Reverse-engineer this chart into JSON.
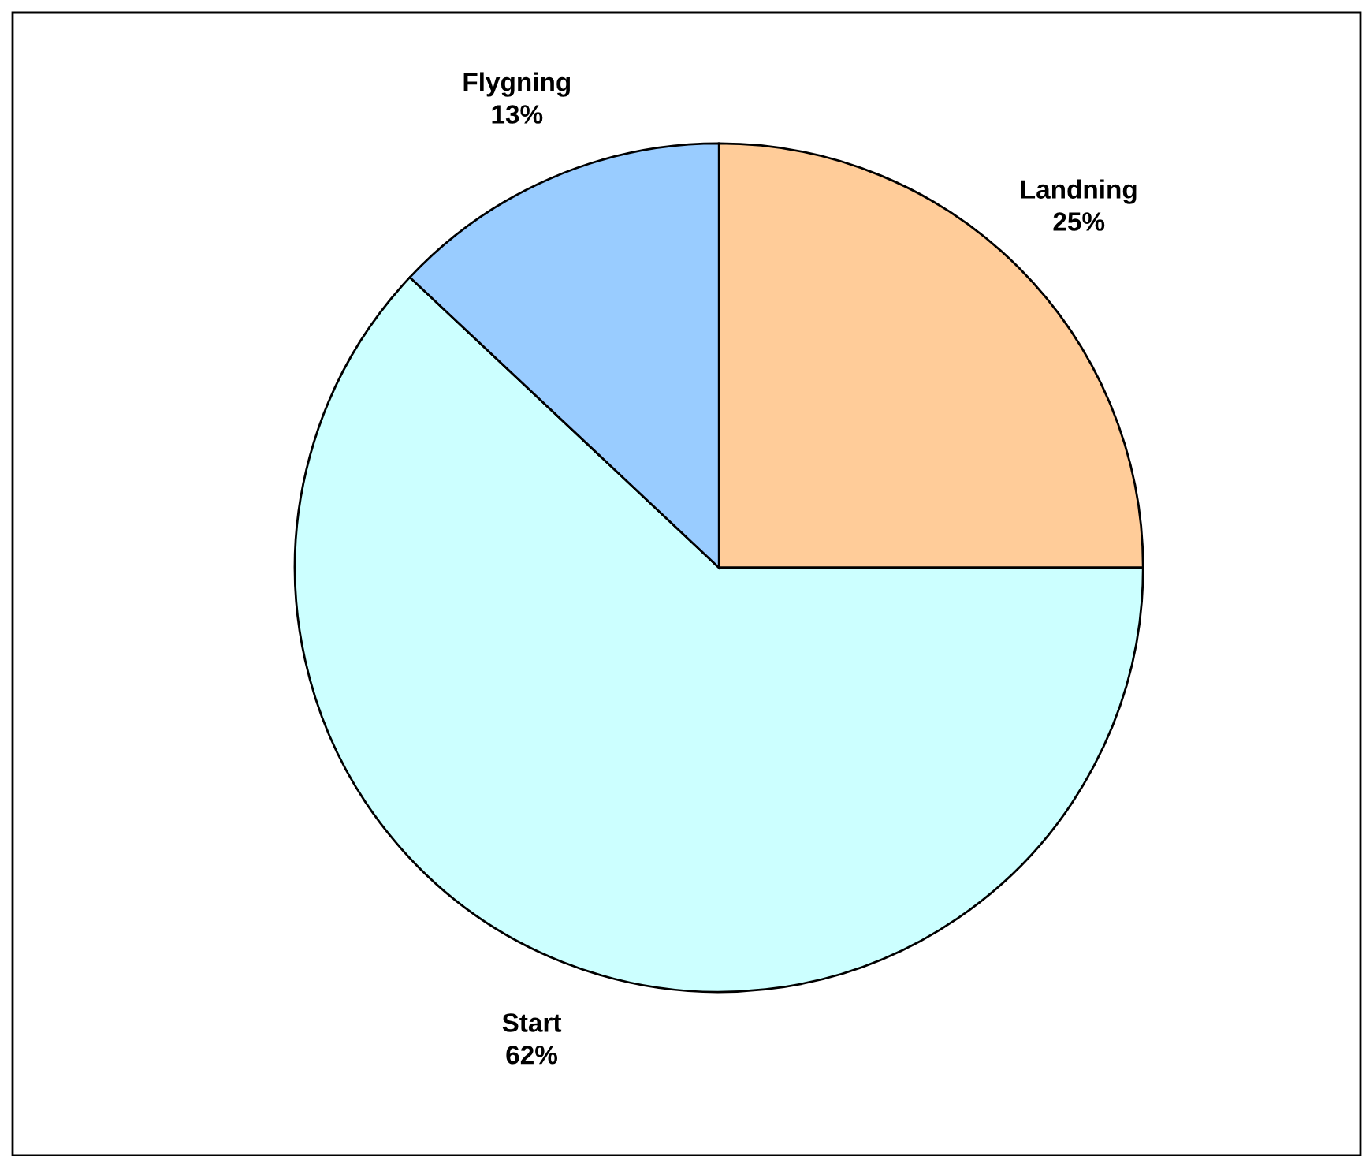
{
  "chart_data": {
    "type": "pie",
    "categories": [
      "Landning",
      "Start",
      "Flygning"
    ],
    "values": [
      25,
      62,
      13
    ],
    "colors": [
      "#ffcc99",
      "#ccffff",
      "#99ccff"
    ],
    "value_labels": [
      "25%",
      "62%",
      "13%"
    ]
  }
}
